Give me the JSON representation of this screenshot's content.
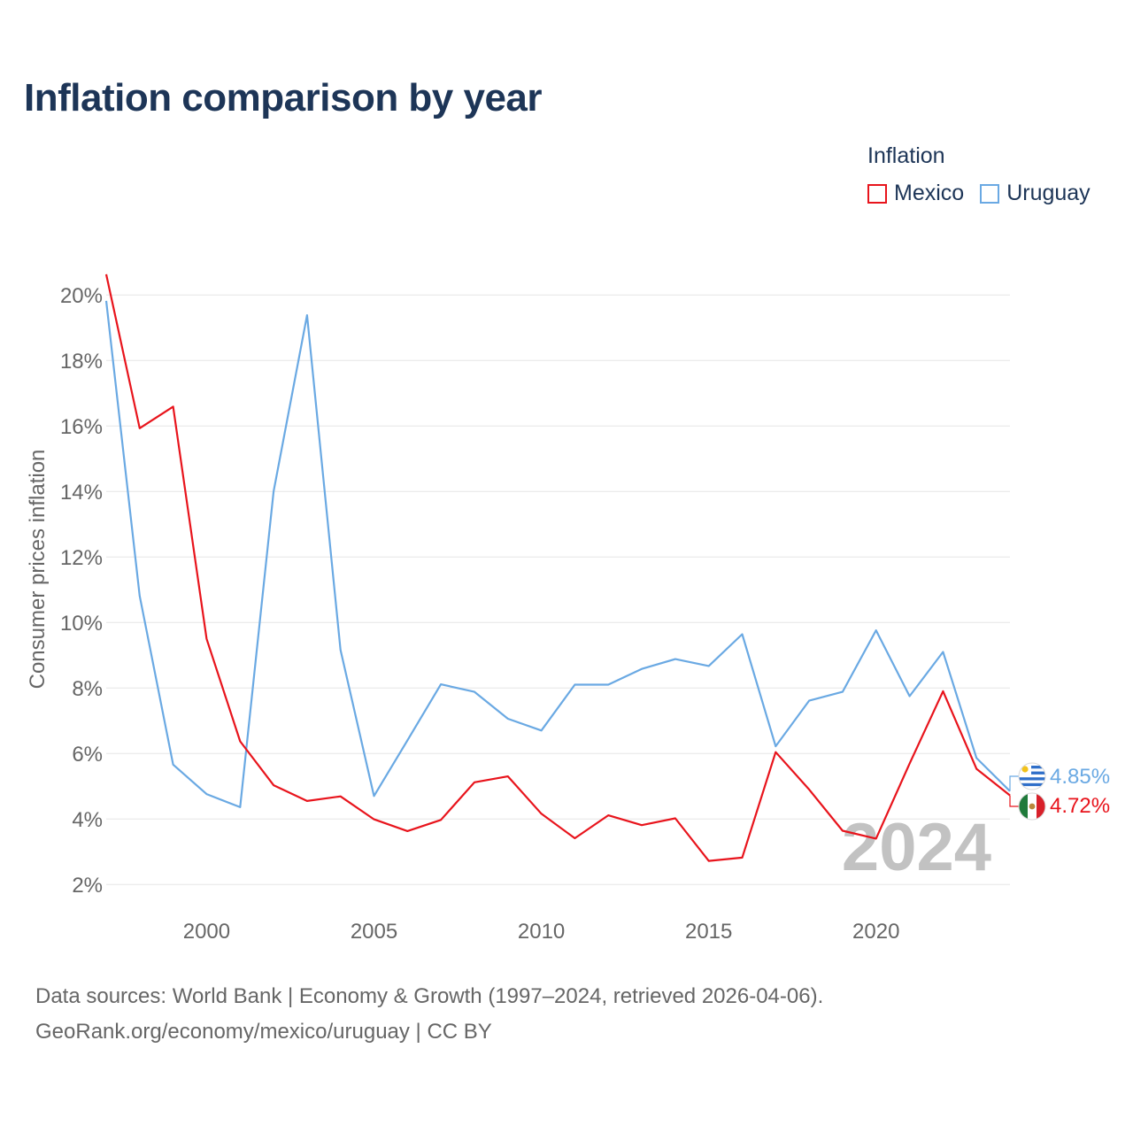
{
  "title": "Inflation comparison by year",
  "legend": {
    "title": "Inflation",
    "items": [
      {
        "name": "Mexico",
        "color": "#e8141c"
      },
      {
        "name": "Uruguay",
        "color": "#6aa9e3"
      }
    ]
  },
  "chart_data": {
    "type": "line",
    "title": "Inflation comparison by year",
    "xlabel": "",
    "ylabel": "Consumer prices inflation",
    "xlim": [
      1997,
      2024
    ],
    "ylim": [
      1.6,
      20.6
    ],
    "yticks": [
      2,
      4,
      6,
      8,
      10,
      12,
      14,
      16,
      18,
      20
    ],
    "ytick_labels": [
      "2%",
      "4%",
      "6%",
      "8%",
      "10%",
      "12%",
      "14%",
      "16%",
      "18%",
      "20%"
    ],
    "xticks": [
      2000,
      2005,
      2010,
      2015,
      2020
    ],
    "xtick_labels": [
      "2000",
      "2005",
      "2010",
      "2015",
      "2020"
    ],
    "grid": true,
    "x": [
      1997,
      1998,
      1999,
      2000,
      2001,
      2002,
      2003,
      2004,
      2005,
      2006,
      2007,
      2008,
      2009,
      2010,
      2011,
      2012,
      2013,
      2014,
      2015,
      2016,
      2017,
      2018,
      2019,
      2020,
      2021,
      2022,
      2023,
      2024
    ],
    "series": [
      {
        "name": "Mexico",
        "color": "#e8141c",
        "values": [
          20.63,
          15.93,
          16.59,
          9.5,
          6.37,
          5.03,
          4.55,
          4.69,
          3.99,
          3.63,
          3.97,
          5.12,
          5.3,
          4.16,
          3.41,
          4.11,
          3.81,
          4.02,
          2.72,
          2.82,
          6.04,
          4.9,
          3.64,
          3.4,
          5.69,
          7.9,
          5.53,
          4.72
        ],
        "end_label": "4.72%"
      },
      {
        "name": "Uruguay",
        "color": "#6aa9e3",
        "values": [
          19.82,
          10.81,
          5.66,
          4.76,
          4.36,
          14.0,
          19.38,
          9.16,
          4.7,
          6.4,
          8.11,
          7.88,
          7.06,
          6.7,
          8.1,
          8.1,
          8.58,
          8.88,
          8.67,
          9.64,
          6.22,
          7.61,
          7.88,
          9.76,
          7.75,
          9.1,
          5.86,
          4.85
        ],
        "end_label": "4.85%"
      }
    ],
    "watermark_year": "2024",
    "annotations": [
      "4.85%",
      "4.72%"
    ]
  },
  "source": {
    "line1": "Data sources: World Bank | Economy & Growth (1997–2024, retrieved 2026-04-06).",
    "line2": "GeoRank.org/economy/mexico/uruguay | CC BY"
  }
}
